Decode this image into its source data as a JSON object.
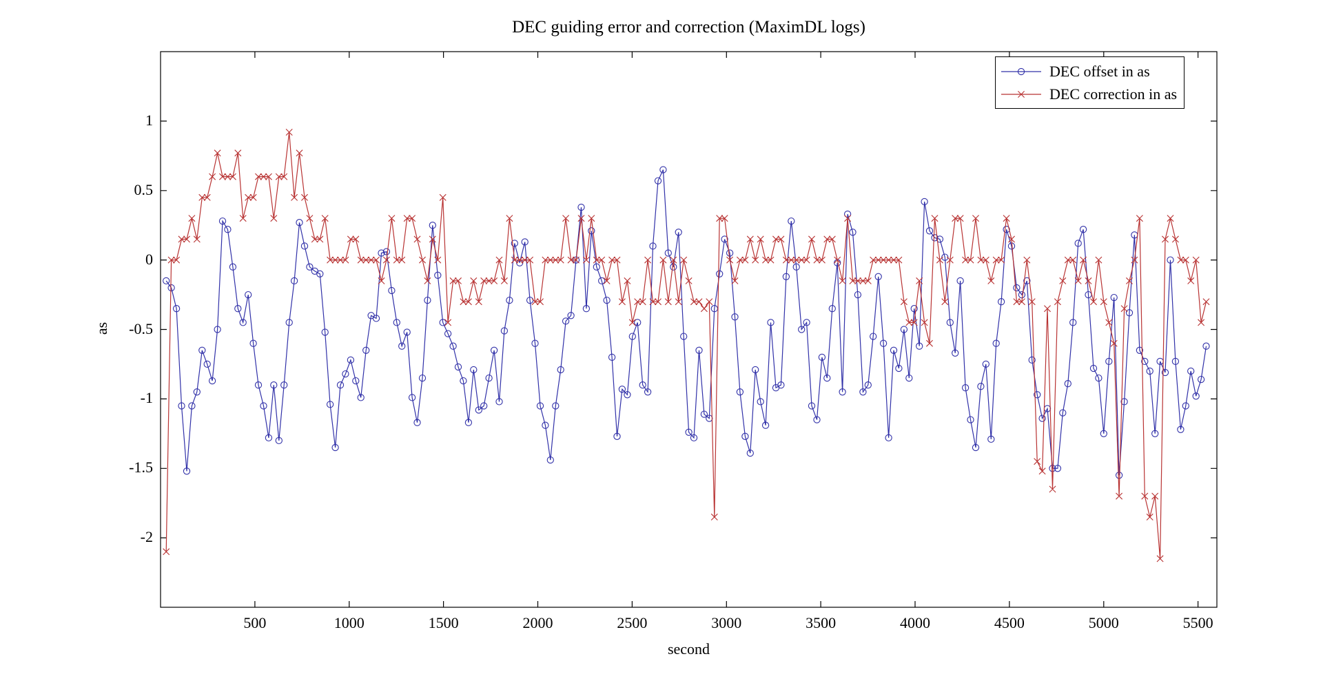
{
  "title": "DEC guiding error and correction (MaximDL logs)",
  "axes": {
    "xlabel": "second",
    "ylabel": "as",
    "xtick_labels": [
      "500",
      "1000",
      "1500",
      "2000",
      "2500",
      "3000",
      "3500",
      "4000",
      "4500",
      "5000",
      "5500"
    ],
    "ytick_labels": [
      "1",
      "0.5",
      "0",
      "-0.5",
      "-1",
      "-1.5",
      "-2"
    ]
  },
  "legend": {
    "position": "top-right",
    "entries": [
      {
        "label": "DEC offset in as",
        "marker": "circle-icon"
      },
      {
        "label": "DEC correction in as",
        "marker": "x-icon"
      }
    ]
  },
  "colors": {
    "offset_line": "#3030a8",
    "correction_line": "#b83232",
    "axis": "#000000",
    "background": "#ffffff",
    "text": "#000000"
  },
  "chart_data": {
    "type": "line",
    "title": "DEC guiding error and correction (MaximDL logs)",
    "xlabel": "second",
    "ylabel": "as",
    "xlim": [
      0,
      5600
    ],
    "ylim": [
      -2.5,
      1.5
    ],
    "grid": false,
    "legend_position": "top-right",
    "xticks": [
      500,
      1000,
      1500,
      2000,
      2500,
      3000,
      3500,
      4000,
      4500,
      5000,
      5500
    ],
    "yticks": [
      1,
      0.5,
      0,
      -0.5,
      -1,
      -1.5,
      -2
    ],
    "x_start": 30,
    "x_step": 27.16,
    "series": [
      {
        "name": "DEC offset in as",
        "marker": "circle",
        "color": "#3030a8",
        "values": [
          -0.15,
          -0.2,
          -0.35,
          -1.05,
          -1.52,
          -1.05,
          -0.95,
          -0.65,
          -0.75,
          -0.87,
          -0.5,
          0.28,
          0.22,
          -0.05,
          -0.35,
          -0.45,
          -0.25,
          -0.6,
          -0.9,
          -1.05,
          -1.28,
          -0.9,
          -1.3,
          -0.9,
          -0.45,
          -0.15,
          0.27,
          0.1,
          -0.05,
          -0.08,
          -0.1,
          -0.52,
          -1.04,
          -1.35,
          -0.9,
          -0.82,
          -0.72,
          -0.87,
          -0.99,
          -0.65,
          -0.4,
          -0.42,
          0.05,
          0.06,
          -0.22,
          -0.45,
          -0.62,
          -0.52,
          -0.99,
          -1.17,
          -0.85,
          -0.29,
          0.25,
          -0.11,
          -0.45,
          -0.53,
          -0.62,
          -0.77,
          -0.87,
          -1.17,
          -0.79,
          -1.08,
          -1.05,
          -0.85,
          -0.65,
          -1.02,
          -0.51,
          -0.29,
          0.12,
          -0.02,
          0.13,
          -0.29,
          -0.6,
          -1.05,
          -1.19,
          -1.44,
          -1.05,
          -0.79,
          -0.44,
          -0.4,
          0.0,
          0.38,
          -0.35,
          0.21,
          -0.05,
          -0.15,
          -0.29,
          -0.7,
          -1.27,
          -0.93,
          -0.97,
          -0.55,
          -0.45,
          -0.9,
          -0.95,
          0.1,
          0.57,
          0.65,
          0.05,
          -0.05,
          0.2,
          -0.55,
          -1.24,
          -1.28,
          -0.65,
          -1.11,
          -1.14,
          -0.35,
          -0.1,
          0.15,
          0.05,
          -0.41,
          -0.95,
          -1.27,
          -1.39,
          -0.79,
          -1.02,
          -1.19,
          -0.45,
          -0.92,
          -0.9,
          -0.12,
          0.28,
          -0.05,
          -0.5,
          -0.45,
          -1.05,
          -1.15,
          -0.7,
          -0.85,
          -0.35,
          -0.02,
          -0.95,
          0.33,
          0.2,
          -0.25,
          -0.95,
          -0.9,
          -0.55,
          -0.12,
          -0.6,
          -1.28,
          -0.65,
          -0.78,
          -0.5,
          -0.85,
          -0.35,
          -0.62,
          0.42,
          0.21,
          0.16,
          0.15,
          0.02,
          -0.45,
          -0.67,
          -0.15,
          -0.92,
          -1.15,
          -1.35,
          -0.91,
          -0.75,
          -1.29,
          -0.6,
          -0.3,
          0.22,
          0.1,
          -0.2,
          -0.25,
          -0.15,
          -0.72,
          -0.97,
          -1.14,
          -1.07,
          -1.5,
          -1.5,
          -1.1,
          -0.89,
          -0.45,
          0.12,
          0.22,
          -0.25,
          -0.78,
          -0.85,
          -1.25,
          -0.73,
          -0.27,
          -1.55,
          -1.02,
          -0.38,
          0.18,
          -0.65,
          -0.73,
          -0.8,
          -1.25,
          -0.73,
          -0.81,
          0.0,
          -0.73,
          -1.22,
          -1.05,
          -0.8,
          -0.98,
          -0.86,
          -0.62
        ]
      },
      {
        "name": "DEC correction in as",
        "marker": "x",
        "color": "#b83232",
        "values": [
          -2.1,
          0.0,
          0.0,
          0.15,
          0.15,
          0.3,
          0.15,
          0.45,
          0.45,
          0.6,
          0.77,
          0.6,
          0.6,
          0.6,
          0.77,
          0.3,
          0.45,
          0.45,
          0.6,
          0.6,
          0.6,
          0.3,
          0.6,
          0.6,
          0.92,
          0.45,
          0.77,
          0.45,
          0.3,
          0.15,
          0.15,
          0.3,
          0.0,
          0.0,
          0.0,
          0.0,
          0.15,
          0.15,
          0.0,
          0.0,
          0.0,
          0.0,
          -0.15,
          0.0,
          0.3,
          0.0,
          0.0,
          0.3,
          0.3,
          0.15,
          0.0,
          -0.15,
          0.15,
          0.0,
          0.45,
          -0.45,
          -0.15,
          -0.15,
          -0.3,
          -0.3,
          -0.15,
          -0.3,
          -0.15,
          -0.15,
          -0.15,
          0.0,
          -0.15,
          0.3,
          0.0,
          0.0,
          0.0,
          0.0,
          -0.3,
          -0.3,
          0.0,
          0.0,
          0.0,
          0.0,
          0.3,
          0.0,
          0.0,
          0.3,
          0.0,
          0.3,
          0.0,
          0.0,
          -0.15,
          0.0,
          0.0,
          -0.3,
          -0.15,
          -0.45,
          -0.3,
          -0.3,
          0.0,
          -0.3,
          -0.3,
          0.0,
          -0.3,
          0.0,
          -0.3,
          0.0,
          -0.15,
          -0.3,
          -0.3,
          -0.35,
          -0.3,
          -1.85,
          0.3,
          0.3,
          0.0,
          -0.15,
          0.0,
          0.0,
          0.15,
          0.0,
          0.15,
          0.0,
          0.0,
          0.15,
          0.15,
          0.0,
          0.0,
          0.0,
          0.0,
          0.0,
          0.15,
          0.0,
          0.0,
          0.15,
          0.15,
          0.0,
          -0.15,
          0.3,
          -0.15,
          -0.15,
          -0.15,
          -0.15,
          0.0,
          0.0,
          0.0,
          0.0,
          0.0,
          0.0,
          -0.3,
          -0.45,
          -0.45,
          -0.15,
          -0.45,
          -0.6,
          0.3,
          0.0,
          -0.3,
          0.0,
          0.3,
          0.3,
          0.0,
          0.0,
          0.3,
          0.0,
          0.0,
          -0.15,
          0.0,
          0.0,
          0.3,
          0.15,
          -0.3,
          -0.3,
          0.0,
          -0.3,
          -1.45,
          -1.52,
          -0.35,
          -1.65,
          -0.3,
          -0.15,
          0.0,
          0.0,
          -0.15,
          0.0,
          -0.15,
          -0.3,
          0.0,
          -0.3,
          -0.45,
          -0.6,
          -1.7,
          -0.35,
          -0.15,
          0.0,
          0.3,
          -1.7,
          -1.85,
          -1.7,
          -2.15,
          0.15,
          0.3,
          0.15,
          0.0,
          0.0,
          -0.15,
          0.0,
          -0.45,
          -0.3
        ]
      }
    ]
  }
}
